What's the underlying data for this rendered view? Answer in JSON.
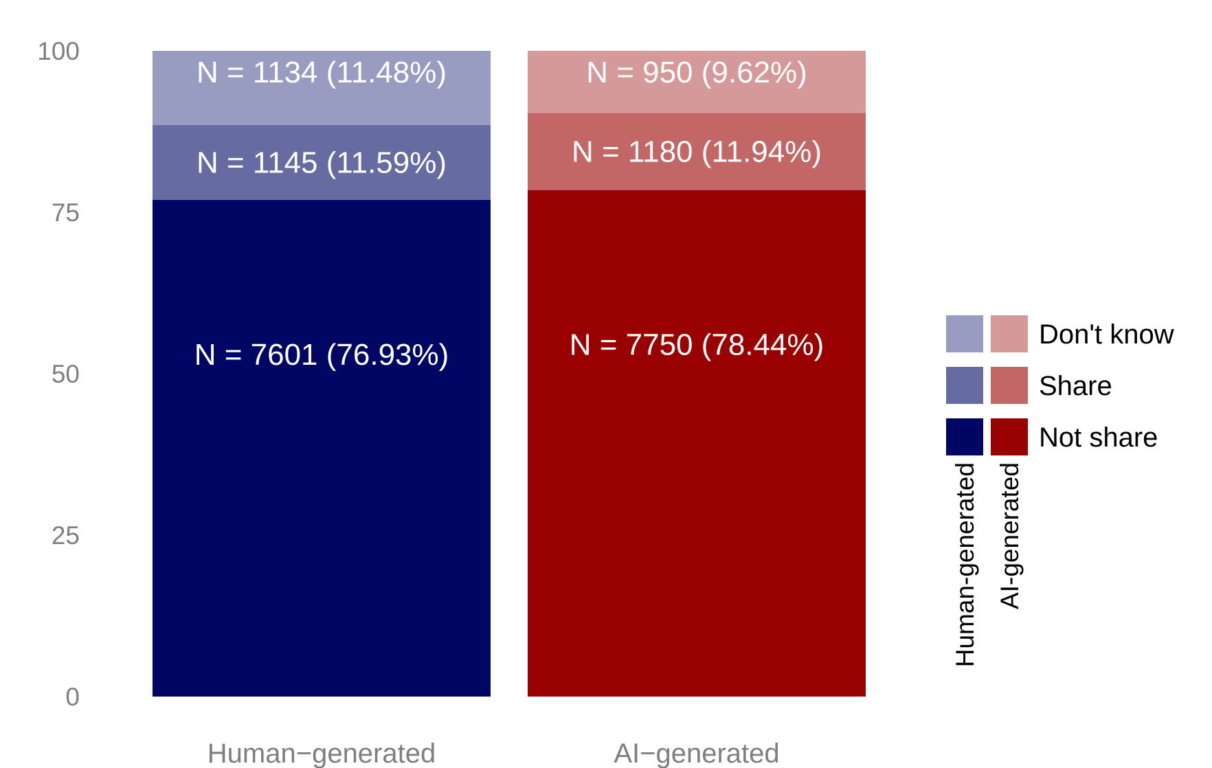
{
  "chart_data": {
    "type": "bar",
    "stacked": true,
    "title": "",
    "xlabel": "",
    "ylabel": "",
    "ylim": [
      0,
      100
    ],
    "yticks": [
      0,
      25,
      50,
      75,
      100
    ],
    "grid": false,
    "legend_position": "right",
    "categories": [
      "Human−generated",
      "AI−generated"
    ],
    "series": [
      {
        "name": "Not share",
        "values": [
          76.93,
          78.44
        ],
        "labels": [
          "N = 7601 (76.93%)",
          "N = 7750 (78.44%)"
        ],
        "colors": [
          "#000663",
          "#990000"
        ]
      },
      {
        "name": "Share",
        "values": [
          11.59,
          11.94
        ],
        "labels": [
          "N = 1145 (11.59%)",
          "N = 1180 (11.94%)"
        ],
        "colors": [
          "#666ba1",
          "#c26666"
        ]
      },
      {
        "name": "Don't know",
        "values": [
          11.48,
          9.62
        ],
        "labels": [
          "N = 1134 (11.48%)",
          "N = 950 (9.62%)"
        ],
        "colors": [
          "#999cc1",
          "#d69999"
        ]
      }
    ],
    "legend": {
      "column_labels": [
        "Human-generated",
        "AI-generated"
      ],
      "row_labels": [
        "Don't know",
        "Share",
        "Not share"
      ]
    }
  }
}
